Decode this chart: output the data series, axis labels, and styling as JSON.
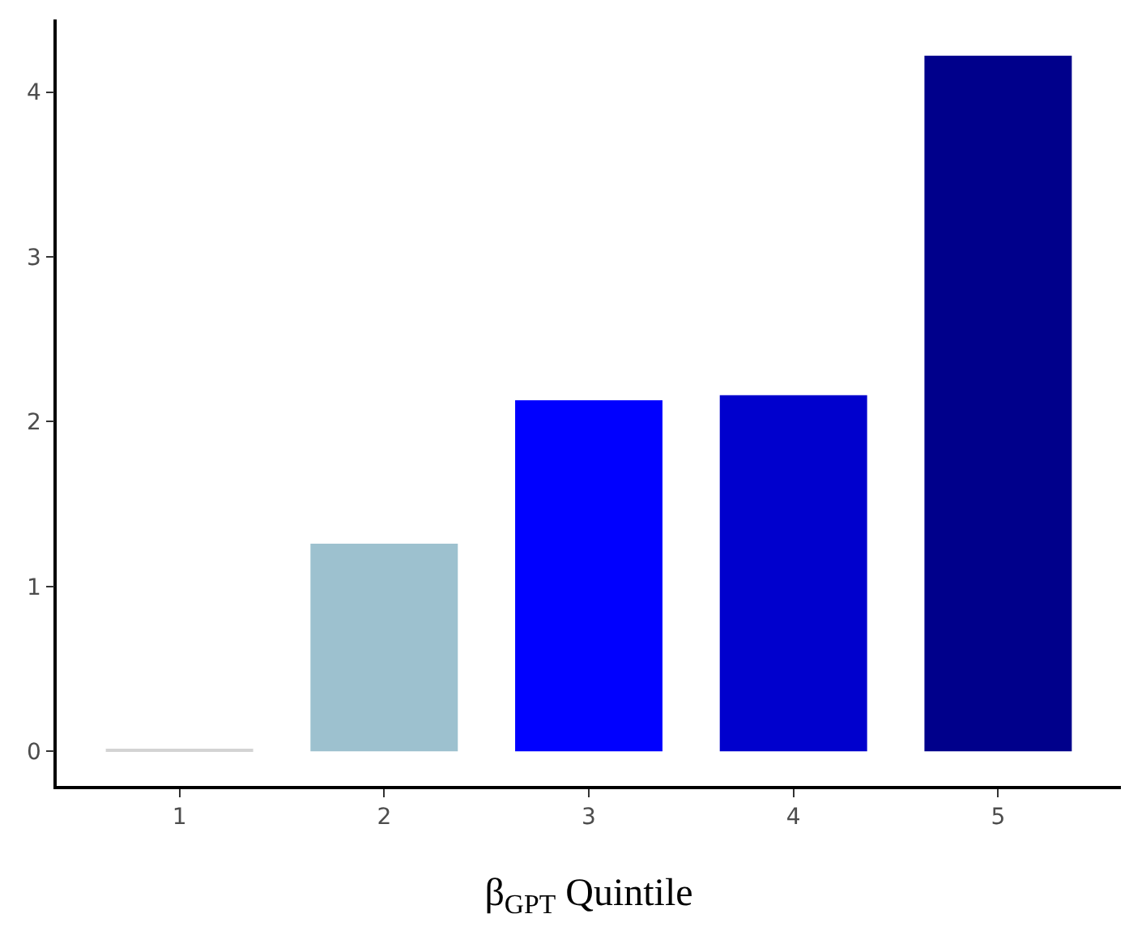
{
  "chart_data": {
    "type": "bar",
    "xlabel": "β$_{GPT}$ Quintile",
    "categories": [
      "1",
      "2",
      "3",
      "4",
      "5"
    ],
    "values": [
      0.01,
      1.26,
      2.13,
      2.16,
      4.22
    ],
    "colors": [
      "#d3d3d3",
      "#9dc1cf",
      "#0000ff",
      "#0000cd",
      "#00008b"
    ],
    "ylim": [
      -0.21,
      4.44
    ],
    "yticks": [
      0,
      1,
      2,
      3,
      4
    ]
  }
}
